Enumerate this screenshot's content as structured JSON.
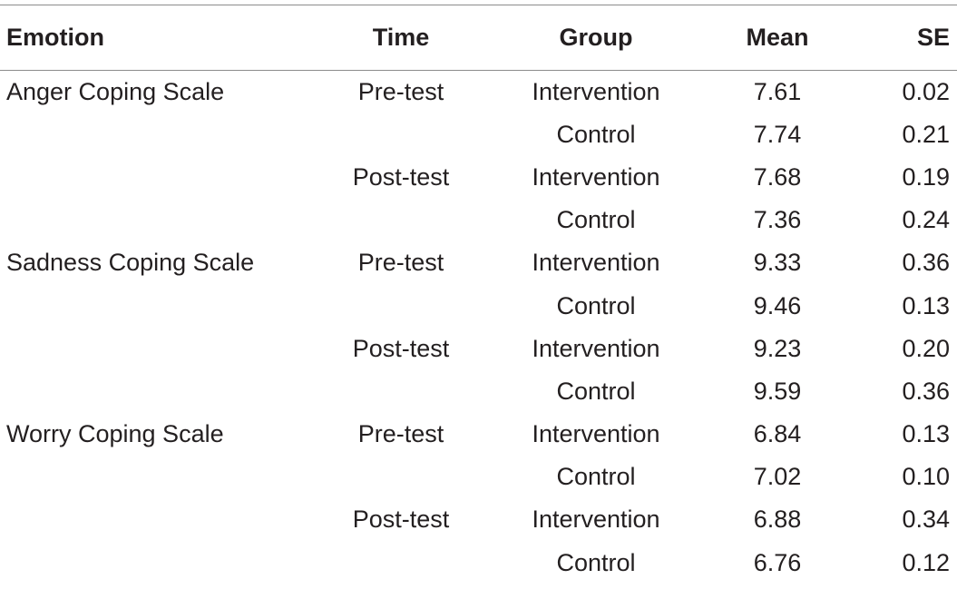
{
  "table": {
    "headers": {
      "emotion": "Emotion",
      "time": "Time",
      "group": "Group",
      "mean": "Mean",
      "se": "SE"
    },
    "rows": [
      {
        "emotion": "Anger Coping Scale",
        "time": "Pre-test",
        "group": "Intervention",
        "mean": "7.61",
        "se": "0.02"
      },
      {
        "emotion": "",
        "time": "",
        "group": "Control",
        "mean": "7.74",
        "se": "0.21"
      },
      {
        "emotion": "",
        "time": "Post-test",
        "group": "Intervention",
        "mean": "7.68",
        "se": "0.19"
      },
      {
        "emotion": "",
        "time": "",
        "group": "Control",
        "mean": "7.36",
        "se": "0.24"
      },
      {
        "emotion": "Sadness Coping Scale",
        "time": "Pre-test",
        "group": "Intervention",
        "mean": "9.33",
        "se": "0.36"
      },
      {
        "emotion": "",
        "time": "",
        "group": "Control",
        "mean": "9.46",
        "se": "0.13"
      },
      {
        "emotion": "",
        "time": "Post-test",
        "group": "Intervention",
        "mean": "9.23",
        "se": "0.20"
      },
      {
        "emotion": "",
        "time": "",
        "group": "Control",
        "mean": "9.59",
        "se": "0.36"
      },
      {
        "emotion": "Worry Coping Scale",
        "time": "Pre-test",
        "group": "Intervention",
        "mean": "6.84",
        "se": "0.13"
      },
      {
        "emotion": "",
        "time": "",
        "group": "Control",
        "mean": "7.02",
        "se": "0.10"
      },
      {
        "emotion": "",
        "time": "Post-test",
        "group": "Intervention",
        "mean": "6.88",
        "se": "0.34"
      },
      {
        "emotion": "",
        "time": "",
        "group": "Control",
        "mean": "6.76",
        "se": "0.12"
      }
    ]
  },
  "colors": {
    "text": "#231f20",
    "rule": "#8c8c8c"
  }
}
